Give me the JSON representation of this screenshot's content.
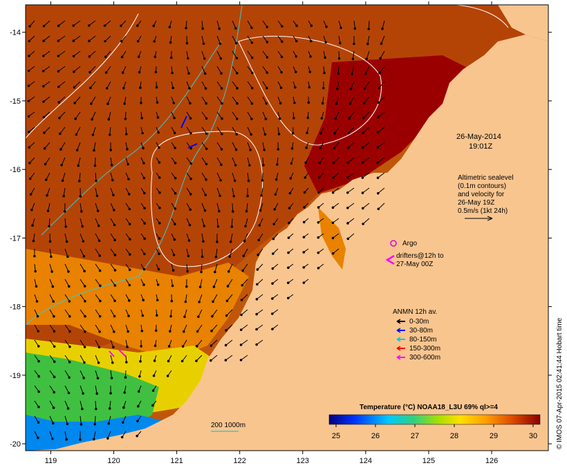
{
  "map": {
    "x_ticks": [
      "119",
      "120",
      "121",
      "122",
      "123",
      "124",
      "125",
      "126"
    ],
    "y_ticks": [
      "-14",
      "-15",
      "-16",
      "-17",
      "-18",
      "-19",
      "-20"
    ]
  },
  "annotations": {
    "date": "26-May-2014",
    "time": "19:01Z",
    "altimetry": [
      "Altimetric sealevel",
      "(0.1m contours)",
      "and velocity for",
      "26-May 19Z",
      "0.5m/s (1kt 24h)"
    ],
    "argo": "Argo",
    "drifters": [
      "drifters@12h to",
      "27-May 00Z"
    ],
    "anmn_title": "ANMN 12h av.",
    "anmn_legend": [
      {
        "label": "0-30m",
        "color": "#000000"
      },
      {
        "label": "30-80m",
        "color": "#0000ff"
      },
      {
        "label": "80-150m",
        "color": "#00cccc"
      },
      {
        "label": "150-300m",
        "color": "#ff0000"
      },
      {
        "label": "300-600m",
        "color": "#ff00ff"
      }
    ],
    "isobath": "200  1000m",
    "credit": "© IMOS 07-Apr-2015 02:41:44 Hobart time"
  },
  "colorbar": {
    "title": "Temperature (°C) NOAA18_L3U 69% ql>=4",
    "ticks": [
      "25",
      "26",
      "27",
      "28",
      "29",
      "30"
    ]
  },
  "colors": {
    "land": "#f9c58f",
    "sea_hot": "#b93a07",
    "sea_max": "#9b0000",
    "contour": "#ffffff",
    "isobath": "#40c8c8",
    "argo": "#dd00dd"
  }
}
